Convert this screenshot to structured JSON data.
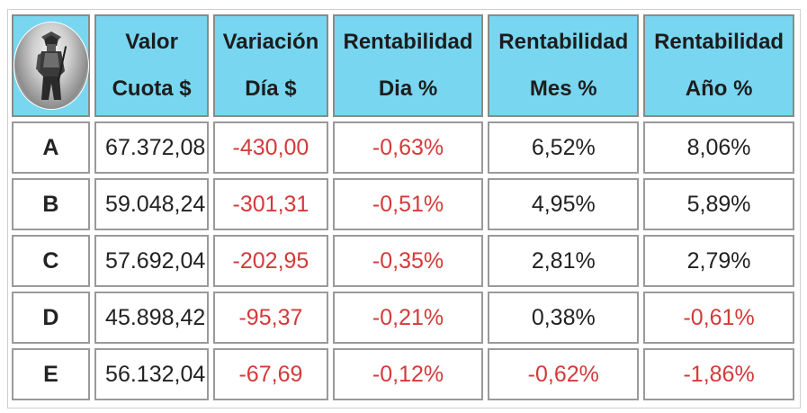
{
  "header": {
    "logo_icon": "samurai-warrior-icon",
    "columns": [
      {
        "line1": "Valor",
        "line2": "Cuota $"
      },
      {
        "line1": "Variación",
        "line2": "Día $"
      },
      {
        "line1": "Rentabilidad",
        "line2": "Dia %"
      },
      {
        "line1": "Rentabilidad",
        "line2": "Mes %"
      },
      {
        "line1": "Rentabilidad",
        "line2": "Año %"
      }
    ]
  },
  "rows": [
    {
      "key": "A",
      "valor": "67.372,08",
      "variacion": "-430,00",
      "dia": "-0,63%",
      "mes": "6,52%",
      "anio": "8,06%"
    },
    {
      "key": "B",
      "valor": "59.048,24",
      "variacion": "-301,31",
      "dia": "-0,51%",
      "mes": "4,95%",
      "anio": "5,89%"
    },
    {
      "key": "C",
      "valor": "57.692,04",
      "variacion": "-202,95",
      "dia": "-0,35%",
      "mes": "2,81%",
      "anio": "2,79%"
    },
    {
      "key": "D",
      "valor": "45.898,42",
      "variacion": "-95,37",
      "dia": "-0,21%",
      "mes": "0,38%",
      "anio": "-0,61%"
    },
    {
      "key": "E",
      "valor": "56.132,04",
      "variacion": "-67,69",
      "dia": "-0,12%",
      "mes": "-0,62%",
      "anio": "-1,86%"
    }
  ],
  "colors": {
    "header_bg": "#79d6f0",
    "negative": "#d43a3a",
    "positive": "#222222",
    "border": "#9a9a9a"
  }
}
